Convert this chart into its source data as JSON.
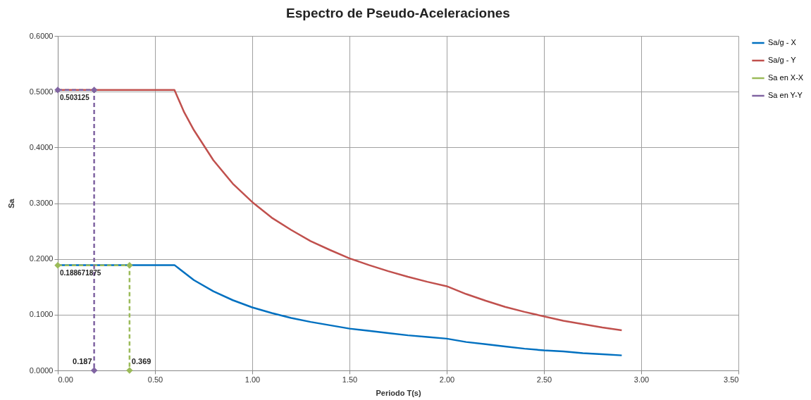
{
  "chart_data": {
    "type": "line",
    "title": "Espectro de Pseudo-Aceleraciones",
    "xlabel": "Periodo T(s)",
    "ylabel": "Sa",
    "xlim": [
      0,
      3.5
    ],
    "xticks": [
      {
        "value": 0,
        "label": "0.00"
      },
      {
        "value": 0.5,
        "label": "0.50"
      },
      {
        "value": 1,
        "label": "1.00"
      },
      {
        "value": 1.5,
        "label": "1.50"
      },
      {
        "value": 2,
        "label": "2.00"
      },
      {
        "value": 2.5,
        "label": "2.50"
      },
      {
        "value": 3,
        "label": "3.00"
      },
      {
        "value": 3.5,
        "label": "3.50"
      }
    ],
    "ylim": [
      0,
      0.6
    ],
    "yticks": [
      {
        "value": 0,
        "label": "0.0000"
      },
      {
        "value": 0.1,
        "label": "0.1000"
      },
      {
        "value": 0.2,
        "label": "0.2000"
      },
      {
        "value": 0.3,
        "label": "0.3000"
      },
      {
        "value": 0.4,
        "label": "0.4000"
      },
      {
        "value": 0.5,
        "label": "0.5000"
      },
      {
        "value": 0.6,
        "label": "0.6000"
      }
    ],
    "grid": true,
    "legend": "right",
    "annotations": [
      {
        "text": "0.503125",
        "x": 0,
        "y": 0.503125
      },
      {
        "text": "0.188671875",
        "x": 0,
        "y": 0.188671875
      },
      {
        "text": "0.187",
        "x": 0.187,
        "y": 0
      },
      {
        "text": "0.369",
        "x": 0.369,
        "y": 0
      }
    ],
    "series": [
      {
        "name": "Sa/g - X",
        "color": "#0070c0",
        "marker": "none",
        "line_style": "solid",
        "x": [
          0,
          0.6,
          0.7,
          0.8,
          0.9,
          1.0,
          1.1,
          1.2,
          1.3,
          1.4,
          1.5,
          1.6,
          1.7,
          1.8,
          1.9,
          2.0,
          2.1,
          2.2,
          2.3,
          2.4,
          2.5,
          2.6,
          2.7,
          2.8,
          2.9
        ],
        "values": [
          0.189,
          0.189,
          0.162,
          0.142,
          0.126,
          0.113,
          0.103,
          0.094,
          0.087,
          0.081,
          0.075,
          0.071,
          0.067,
          0.063,
          0.06,
          0.057,
          0.051,
          0.047,
          0.043,
          0.039,
          0.036,
          0.034,
          0.031,
          0.029,
          0.027
        ]
      },
      {
        "name": "Sa/g - Y",
        "color": "#c0504d",
        "marker": "none",
        "line_style": "solid",
        "x": [
          0,
          0.6,
          0.65,
          0.7,
          0.8,
          0.9,
          1.0,
          1.1,
          1.2,
          1.3,
          1.4,
          1.5,
          1.6,
          1.7,
          1.8,
          1.9,
          2.0,
          2.1,
          2.2,
          2.3,
          2.4,
          2.5,
          2.6,
          2.7,
          2.8,
          2.9
        ],
        "values": [
          0.503,
          0.503,
          0.463,
          0.431,
          0.377,
          0.335,
          0.302,
          0.274,
          0.252,
          0.232,
          0.216,
          0.201,
          0.189,
          0.178,
          0.168,
          0.159,
          0.151,
          0.137,
          0.125,
          0.114,
          0.105,
          0.097,
          0.089,
          0.083,
          0.077,
          0.072
        ]
      },
      {
        "name": "Sa en X-X",
        "color": "#9bbb59",
        "marker": "diamond",
        "line_style": "dashed",
        "x": [
          0,
          0.369,
          0.369
        ],
        "values": [
          0.188671875,
          0.188671875,
          0
        ]
      },
      {
        "name": "Sa en Y-Y",
        "color": "#8064a2",
        "marker": "diamond",
        "line_style": "dashed",
        "x": [
          0,
          0.187,
          0.187
        ],
        "values": [
          0.503125,
          0.503125,
          0
        ]
      }
    ]
  }
}
